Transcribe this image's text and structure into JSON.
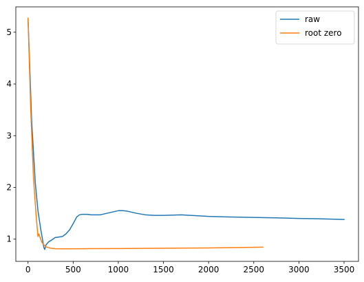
{
  "chart_data": {
    "type": "line",
    "title": "",
    "xlabel": "",
    "ylabel": "",
    "xlim": [
      -135,
      3660
    ],
    "ylim": [
      0.57,
      5.49
    ],
    "xticks": [
      0,
      500,
      1000,
      1500,
      2000,
      2500,
      3000,
      3500
    ],
    "yticks": [
      1,
      2,
      3,
      4,
      5
    ],
    "grid": false,
    "legend": "top-right",
    "series": [
      {
        "name": "raw",
        "color": "#1f77b4",
        "x": [
          0,
          40,
          80,
          110,
          140,
          160,
          175,
          185,
          200,
          230,
          260,
          300,
          340,
          380,
          420,
          460,
          500,
          540,
          570,
          600,
          650,
          700,
          800,
          900,
          1000,
          1050,
          1100,
          1200,
          1300,
          1400,
          1500,
          1600,
          1700,
          1800,
          2000,
          2200,
          2500,
          2800,
          3000,
          3200,
          3500
        ],
        "y": [
          5.27,
          3.3,
          2.1,
          1.55,
          1.2,
          1.0,
          0.84,
          0.8,
          0.89,
          0.95,
          0.98,
          1.03,
          1.04,
          1.05,
          1.1,
          1.18,
          1.3,
          1.43,
          1.47,
          1.48,
          1.48,
          1.47,
          1.47,
          1.51,
          1.55,
          1.55,
          1.54,
          1.5,
          1.47,
          1.46,
          1.46,
          1.465,
          1.47,
          1.46,
          1.44,
          1.43,
          1.42,
          1.41,
          1.4,
          1.395,
          1.38
        ]
      },
      {
        "name": "root zero",
        "color": "#ff7f0e",
        "x": [
          0,
          30,
          60,
          90,
          110,
          120,
          130,
          150,
          170,
          200,
          250,
          300,
          400,
          600,
          1000,
          1500,
          2000,
          2200,
          2400,
          2600
        ],
        "y": [
          5.27,
          3.5,
          2.2,
          1.45,
          1.05,
          1.1,
          1.05,
          0.95,
          0.9,
          0.85,
          0.825,
          0.815,
          0.813,
          0.815,
          0.818,
          0.825,
          0.83,
          0.835,
          0.84,
          0.845
        ]
      }
    ]
  }
}
